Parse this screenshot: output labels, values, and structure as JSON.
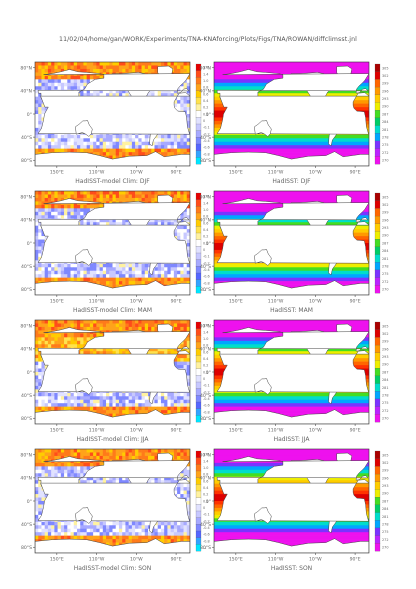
{
  "page_title": "11/02/04/home/gan/WORK/Experiments/TNA-KNAforcing/Plots/Figs/TNA/ROWAN/diffclimsst.jnl",
  "colors": {
    "diff_scale": [
      "#00e5ff",
      "#33a3ff",
      "#5566ff",
      "#7f88ff",
      "#a7a9ff",
      "#c7c8ff",
      "#e1e2ff",
      "#ffffff",
      "#fff2a0",
      "#ffe24d",
      "#ffcc00",
      "#ffa31a",
      "#ff7a1a",
      "#ff4d1a",
      "#e60000"
    ],
    "sst_scale": [
      "#ee11ee",
      "#bb22ff",
      "#7a33ff",
      "#3366ff",
      "#00a6ff",
      "#00ddcc",
      "#00cc66",
      "#44dd22",
      "#aaee00",
      "#eeee00",
      "#ffcc00",
      "#ff9900",
      "#ff6600",
      "#ff3300",
      "#dd0000",
      "#aa0000"
    ],
    "land": "#ffffff",
    "coast": "#444444"
  },
  "chart_data": [
    {
      "type": "heatmap",
      "panel": "diff",
      "title": "HadISST-model Clim: DJF",
      "xticks": [
        "150°E",
        "110°W",
        "10°W",
        "90°E"
      ],
      "yticks": [
        "80°N",
        "40°N",
        "0°",
        "40°S",
        "80°S"
      ],
      "colorbar": [
        "1.8",
        "1.4",
        "1.0",
        "0.8",
        "0.6",
        "0.4",
        "0.2",
        "0.1",
        "0",
        "-0.1",
        "-0.2",
        "-0.4",
        "-0.6",
        "-0.8",
        "-1"
      ]
    },
    {
      "type": "heatmap",
      "panel": "sst",
      "title": "HadISST: DJF",
      "xticks": [
        "150°E",
        "110°W",
        "10°W",
        "90°E"
      ],
      "yticks": [
        "80°N",
        "40°N",
        "0°",
        "40°S",
        "80°S"
      ],
      "colorbar": [
        "305",
        "302",
        "299",
        "296",
        "293",
        "290",
        "287",
        "284",
        "281",
        "278",
        "275",
        "272",
        "270"
      ]
    },
    {
      "type": "heatmap",
      "panel": "diff",
      "title": "HadISST-model Clim: MAM",
      "xticks": [
        "150°E",
        "110°W",
        "10°W",
        "90°E"
      ],
      "yticks": [
        "80°N",
        "40°N",
        "0°",
        "40°S",
        "80°S"
      ],
      "colorbar": [
        "1.8",
        "1.4",
        "1.0",
        "0.8",
        "0.6",
        "0.4",
        "0.2",
        "0.1",
        "0",
        "-0.1",
        "-0.2",
        "-0.4",
        "-0.6",
        "-0.8",
        "-1"
      ]
    },
    {
      "type": "heatmap",
      "panel": "sst",
      "title": "HadISST: MAM",
      "xticks": [
        "150°E",
        "110°W",
        "10°W",
        "90°E"
      ],
      "yticks": [
        "80°N",
        "40°N",
        "0°",
        "40°S",
        "80°S"
      ],
      "colorbar": [
        "305",
        "302",
        "299",
        "296",
        "293",
        "290",
        "287",
        "284",
        "281",
        "278",
        "275",
        "272",
        "270"
      ]
    },
    {
      "type": "heatmap",
      "panel": "diff",
      "title": "HadISST-model Clim: JJA",
      "xticks": [
        "150°E",
        "110°W",
        "10°W",
        "90°E"
      ],
      "yticks": [
        "80°N",
        "40°N",
        "0°",
        "40°S",
        "80°S"
      ],
      "colorbar": [
        "1.8",
        "1.4",
        "1.0",
        "0.8",
        "0.6",
        "0.4",
        "0.2",
        "0.1",
        "0",
        "-0.1",
        "-0.2",
        "-0.4",
        "-0.6",
        "-0.8",
        "-1"
      ]
    },
    {
      "type": "heatmap",
      "panel": "sst",
      "title": "HadISST: JJA",
      "xticks": [
        "150°E",
        "110°W",
        "10°W",
        "90°E"
      ],
      "yticks": [
        "80°N",
        "40°N",
        "0°",
        "40°S",
        "80°S"
      ],
      "colorbar": [
        "305",
        "302",
        "299",
        "296",
        "293",
        "290",
        "287",
        "284",
        "281",
        "278",
        "275",
        "272",
        "270"
      ]
    },
    {
      "type": "heatmap",
      "panel": "diff",
      "title": "HadISST-model Clim: SON",
      "xticks": [
        "150°E",
        "110°W",
        "10°W",
        "90°E"
      ],
      "yticks": [
        "80°N",
        "40°N",
        "0°",
        "40°S",
        "80°S"
      ],
      "colorbar": [
        "1.8",
        "1.4",
        "1.0",
        "0.8",
        "0.6",
        "0.4",
        "0.2",
        "0.1",
        "0",
        "-0.1",
        "-0.2",
        "-0.4",
        "-0.6",
        "-0.8",
        "-1"
      ]
    },
    {
      "type": "heatmap",
      "panel": "sst",
      "title": "HadISST: SON",
      "xticks": [
        "150°E",
        "110°W",
        "10°W",
        "90°E"
      ],
      "yticks": [
        "80°N",
        "40°N",
        "0°",
        "40°S",
        "80°S"
      ],
      "colorbar": [
        "305",
        "302",
        "299",
        "296",
        "293",
        "290",
        "287",
        "284",
        "281",
        "278",
        "275",
        "272",
        "270"
      ]
    }
  ]
}
